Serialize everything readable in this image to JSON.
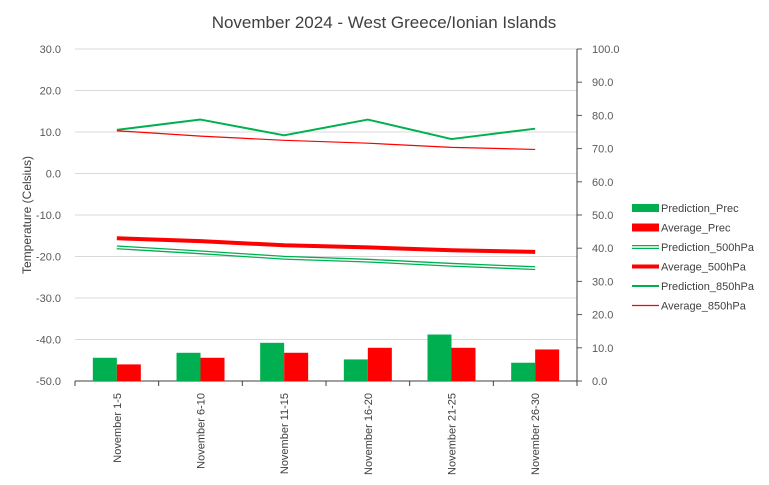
{
  "chart_data": {
    "type": "bar",
    "title": "November 2024 - West Greece/Ionian Islands",
    "ylabel": "Temperature (Celsius)",
    "categories": [
      "November 1-5",
      "November 6-10",
      "November 11-15",
      "November 16-20",
      "November 21-25",
      "November 26-30"
    ],
    "ylim_left": [
      -50,
      30
    ],
    "yticks_left": [
      "30.0",
      "20.0",
      "10.0",
      "0.0",
      "-10.0",
      "-20.0",
      "-30.0",
      "-40.0",
      "-50.0"
    ],
    "ylim_right": [
      0,
      100
    ],
    "yticks_right": [
      "100.0",
      "90.0",
      "80.0",
      "70.0",
      "60.0",
      "50.0",
      "40.0",
      "30.0",
      "20.0",
      "10.0",
      "0.0"
    ],
    "grid": "horizontal",
    "legend_position": "right",
    "series": [
      {
        "name": "Prediction_Prec",
        "kind": "bar",
        "axis": "right",
        "color": "#00b050",
        "values": [
          7.0,
          8.5,
          11.5,
          6.5,
          14.0,
          5.5
        ]
      },
      {
        "name": "Average_Prec",
        "kind": "bar",
        "axis": "right",
        "color": "#ff0000",
        "values": [
          5.0,
          7.0,
          8.5,
          10.0,
          10.0,
          9.5
        ]
      },
      {
        "name": "Prediction_500hPa",
        "kind": "line",
        "style": "double",
        "axis": "left",
        "color": "#00b050",
        "values": [
          -17.8,
          -19.0,
          -20.3,
          -21.0,
          -22.0,
          -22.8
        ]
      },
      {
        "name": "Average_500hPa",
        "kind": "line",
        "style": "thick",
        "axis": "left",
        "color": "#ff0000",
        "values": [
          -15.6,
          -16.3,
          -17.3,
          -17.8,
          -18.5,
          -18.9
        ]
      },
      {
        "name": "Prediction_850hPa",
        "kind": "line",
        "style": "normal",
        "axis": "left",
        "color": "#00b050",
        "values": [
          10.5,
          13.0,
          9.2,
          13.0,
          8.3,
          10.8
        ]
      },
      {
        "name": "Average_850hPa",
        "kind": "line",
        "style": "thin",
        "axis": "left",
        "color": "#ff0000",
        "values": [
          10.3,
          9.0,
          8.0,
          7.3,
          6.3,
          5.8
        ]
      }
    ]
  }
}
